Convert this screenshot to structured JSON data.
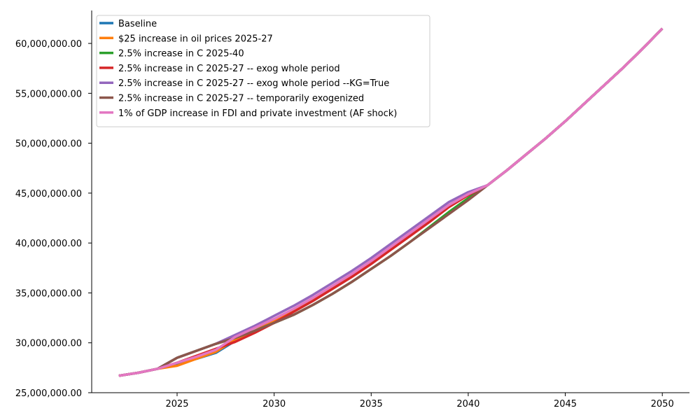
{
  "chart_data": {
    "type": "line",
    "title": "",
    "xlabel": "",
    "ylabel": "",
    "xlim": [
      2020.6,
      2051.4
    ],
    "ylim": [
      25000000,
      63300000
    ],
    "grid": false,
    "legend_position": "top-left",
    "x_ticks": [
      2025,
      2030,
      2035,
      2040,
      2045,
      2050
    ],
    "x_tick_labels": [
      "2025",
      "2030",
      "2035",
      "2040",
      "2045",
      "2050"
    ],
    "y_ticks": [
      25000000,
      30000000,
      35000000,
      40000000,
      45000000,
      50000000,
      55000000,
      60000000
    ],
    "y_tick_labels": [
      "25,000,000.00",
      "30,000,000.00",
      "35,000,000.00",
      "40,000,000.00",
      "45,000,000.00",
      "50,000,000.00",
      "55,000,000.00",
      "60,000,000.00"
    ],
    "x": [
      2022,
      2023,
      2024,
      2025,
      2026,
      2027,
      2028,
      2029,
      2030,
      2031,
      2032,
      2033,
      2034,
      2035,
      2036,
      2037,
      2038,
      2039,
      2040,
      2041,
      2042,
      2043,
      2044,
      2045,
      2046,
      2047,
      2048,
      2049,
      2050
    ],
    "series": [
      {
        "name": "Baseline",
        "color": "#1f77b4",
        "values": [
          26700000,
          27000000,
          27400000,
          27900000,
          28400000,
          29000000,
          30200000,
          31200000,
          32200000,
          33200000,
          34300000,
          35500000,
          36700000,
          38000000,
          39400000,
          40800000,
          42200000,
          43700000,
          44900000,
          45800000,
          47300000,
          48900000,
          50500000,
          52200000,
          54000000,
          55800000,
          57600000,
          59500000,
          61500000
        ]
      },
      {
        "name": "$25 increase in oil prices 2025-27",
        "color": "#ff7f0e",
        "values": [
          26700000,
          27000000,
          27400000,
          27700000,
          28400000,
          29100000,
          30300000,
          31200000,
          32200000,
          33200000,
          34300000,
          35500000,
          36700000,
          38000000,
          39400000,
          40800000,
          42200000,
          43700000,
          44800000,
          45800000,
          47300000,
          48900000,
          50500000,
          52200000,
          54000000,
          55800000,
          57600000,
          59500000,
          61500000
        ]
      },
      {
        "name": "2.5% increase in C 2025-40",
        "color": "#2ca02c",
        "values": [
          26700000,
          27000000,
          27400000,
          28500000,
          29200000,
          29900000,
          30500000,
          31200000,
          32000000,
          32800000,
          33800000,
          34900000,
          36100000,
          37400000,
          38700000,
          40100000,
          41600000,
          43100000,
          44500000,
          45800000,
          47300000,
          48900000,
          50500000,
          52200000,
          54000000,
          55800000,
          57600000,
          59500000,
          61500000
        ]
      },
      {
        "name": "2.5% increase in C 2025-27 -- exog whole period",
        "color": "#d62728",
        "values": [
          26700000,
          27000000,
          27400000,
          28000000,
          28700000,
          29400000,
          30100000,
          31000000,
          32000000,
          33100000,
          34200000,
          35400000,
          36600000,
          37900000,
          39300000,
          40700000,
          42100000,
          43600000,
          44800000,
          45800000,
          47300000,
          48900000,
          50500000,
          52200000,
          54000000,
          55800000,
          57600000,
          59500000,
          61500000
        ]
      },
      {
        "name": "2.5% increase in C 2025-27 -- exog whole period --KG=True",
        "color": "#9467bd",
        "values": [
          26700000,
          27000000,
          27400000,
          28500000,
          29200000,
          29900000,
          30800000,
          31700000,
          32700000,
          33700000,
          34800000,
          36000000,
          37200000,
          38500000,
          39900000,
          41300000,
          42700000,
          44100000,
          45100000,
          45800000,
          47300000,
          48900000,
          50500000,
          52200000,
          54000000,
          55800000,
          57600000,
          59500000,
          61500000
        ]
      },
      {
        "name": "2.5% increase in C 2025-27 -- temporarily exogenized",
        "color": "#8c564b",
        "values": [
          26700000,
          27000000,
          27400000,
          28500000,
          29200000,
          29900000,
          30500000,
          31200000,
          32000000,
          32800000,
          33800000,
          34900000,
          36100000,
          37400000,
          38700000,
          40100000,
          41500000,
          42900000,
          44300000,
          45800000,
          47300000,
          48900000,
          50500000,
          52200000,
          54000000,
          55800000,
          57600000,
          59500000,
          61500000
        ]
      },
      {
        "name": "1% of GDP increase in FDI and private investment (AF shock)",
        "color": "#e377c2",
        "values": [
          26700000,
          27000000,
          27400000,
          28000000,
          28600000,
          29300000,
          30600000,
          31500000,
          32400000,
          33400000,
          34500000,
          35700000,
          36900000,
          38200000,
          39600000,
          41000000,
          42400000,
          43800000,
          44900000,
          45800000,
          47300000,
          48900000,
          50500000,
          52200000,
          54000000,
          55800000,
          57600000,
          59500000,
          61500000
        ]
      }
    ]
  }
}
